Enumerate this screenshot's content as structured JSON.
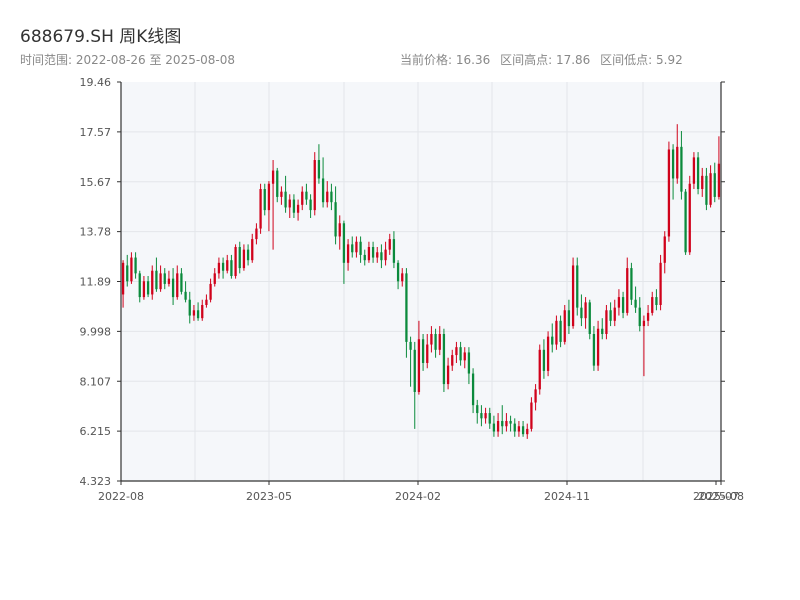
{
  "header": {
    "title": "688679.SH 周K线图",
    "range_label": "时间范围:",
    "range_start": "2022-08-26",
    "range_sep": "至",
    "range_end": "2025-08-08",
    "price_label": "当前价格:",
    "price_value": "16.36",
    "high_label": "区间高点:",
    "high_value": "17.86",
    "low_label": "区间低点:",
    "low_value": "5.92"
  },
  "colors": {
    "up": "#d0021b",
    "down": "#0b8a3c",
    "bg": "#f5f7fa",
    "axis": "#333333",
    "grid": "#e3e6ea"
  },
  "chart_data": {
    "type": "candlestick",
    "title": "688679.SH 周K线图",
    "ylim": [
      4.323,
      19.46
    ],
    "y_ticks": [
      "19.46",
      "17.57",
      "15.67",
      "13.78",
      "11.89",
      "9.998",
      "8.107",
      "6.215",
      "4.323"
    ],
    "x_ticks": [
      "2022-08",
      "2023-05",
      "2024-02",
      "2024-11",
      "2025-07",
      "2025-08"
    ],
    "grid": true,
    "candles": [
      [
        11.4,
        12.6,
        12.7,
        10.9
      ],
      [
        12.5,
        11.9,
        12.9,
        11.7
      ],
      [
        11.9,
        12.8,
        13.0,
        11.8
      ],
      [
        12.8,
        12.2,
        13.0,
        12.0
      ],
      [
        12.2,
        11.3,
        12.3,
        11.1
      ],
      [
        11.3,
        11.9,
        12.1,
        11.2
      ],
      [
        11.9,
        11.4,
        12.1,
        11.3
      ],
      [
        11.4,
        12.3,
        12.5,
        11.2
      ],
      [
        12.3,
        11.6,
        12.8,
        11.5
      ],
      [
        11.6,
        12.2,
        12.5,
        11.5
      ],
      [
        12.2,
        11.8,
        12.4,
        11.6
      ],
      [
        11.8,
        12.0,
        12.3,
        11.7
      ],
      [
        12.0,
        11.3,
        12.4,
        11.0
      ],
      [
        11.3,
        12.2,
        12.5,
        11.2
      ],
      [
        12.2,
        11.5,
        12.4,
        11.4
      ],
      [
        11.5,
        11.2,
        11.9,
        11.1
      ],
      [
        11.2,
        10.6,
        11.5,
        10.3
      ],
      [
        10.6,
        10.8,
        11.0,
        10.4
      ],
      [
        10.8,
        10.5,
        11.1,
        10.4
      ],
      [
        10.5,
        11.0,
        11.2,
        10.4
      ],
      [
        11.0,
        11.2,
        11.4,
        10.9
      ],
      [
        11.2,
        11.8,
        12.0,
        11.1
      ],
      [
        11.8,
        12.2,
        12.4,
        11.7
      ],
      [
        12.2,
        12.6,
        12.8,
        12.0
      ],
      [
        12.6,
        12.3,
        12.8,
        12.0
      ],
      [
        12.3,
        12.7,
        12.9,
        12.2
      ],
      [
        12.7,
        12.1,
        12.9,
        12.0
      ],
      [
        12.1,
        13.2,
        13.3,
        12.0
      ],
      [
        13.2,
        12.4,
        13.4,
        12.2
      ],
      [
        12.4,
        13.1,
        13.3,
        12.3
      ],
      [
        13.1,
        12.7,
        13.3,
        12.5
      ],
      [
        12.7,
        13.5,
        13.7,
        12.6
      ],
      [
        13.5,
        13.9,
        14.1,
        13.3
      ],
      [
        13.9,
        15.4,
        15.6,
        13.7
      ],
      [
        15.4,
        14.6,
        15.6,
        14.4
      ],
      [
        14.6,
        15.6,
        15.7,
        13.8
      ],
      [
        15.6,
        16.1,
        16.5,
        13.1
      ],
      [
        16.1,
        15.1,
        16.2,
        14.9
      ],
      [
        15.1,
        15.3,
        15.5,
        14.8
      ],
      [
        15.3,
        14.7,
        15.9,
        14.5
      ],
      [
        14.7,
        15.0,
        15.2,
        14.3
      ],
      [
        15.0,
        14.5,
        15.2,
        14.3
      ],
      [
        14.5,
        14.8,
        15.0,
        14.2
      ],
      [
        14.8,
        15.3,
        15.5,
        14.6
      ],
      [
        15.3,
        15.0,
        15.6,
        14.8
      ],
      [
        15.0,
        14.6,
        15.2,
        14.3
      ],
      [
        14.6,
        16.5,
        16.8,
        14.4
      ],
      [
        16.5,
        15.8,
        17.1,
        15.6
      ],
      [
        15.8,
        14.9,
        16.6,
        14.7
      ],
      [
        14.9,
        15.3,
        15.7,
        14.7
      ],
      [
        15.3,
        14.9,
        15.6,
        14.6
      ],
      [
        14.9,
        13.6,
        15.5,
        13.3
      ],
      [
        13.6,
        14.1,
        14.4,
        13.1
      ],
      [
        14.1,
        12.6,
        14.2,
        11.8
      ],
      [
        12.6,
        13.3,
        13.5,
        12.3
      ],
      [
        13.3,
        13.0,
        13.6,
        12.8
      ],
      [
        13.0,
        13.4,
        13.6,
        12.8
      ],
      [
        13.4,
        12.9,
        13.6,
        12.6
      ],
      [
        12.9,
        12.7,
        13.1,
        12.5
      ],
      [
        12.7,
        13.2,
        13.4,
        12.6
      ],
      [
        13.2,
        12.8,
        13.4,
        12.6
      ],
      [
        12.8,
        13.0,
        13.2,
        12.6
      ],
      [
        13.0,
        12.7,
        13.3,
        12.4
      ],
      [
        12.7,
        13.1,
        13.4,
        12.5
      ],
      [
        13.1,
        13.5,
        13.7,
        12.9
      ],
      [
        13.5,
        12.6,
        13.8,
        12.4
      ],
      [
        12.6,
        11.9,
        12.7,
        11.6
      ],
      [
        11.9,
        12.2,
        12.4,
        11.7
      ],
      [
        12.2,
        9.6,
        12.4,
        9.0
      ],
      [
        9.6,
        9.3,
        9.8,
        7.9
      ],
      [
        9.3,
        7.7,
        9.6,
        6.3
      ],
      [
        7.7,
        9.7,
        10.4,
        7.6
      ],
      [
        9.7,
        8.8,
        9.9,
        8.5
      ],
      [
        8.8,
        9.5,
        9.9,
        8.6
      ],
      [
        9.5,
        9.9,
        10.2,
        9.2
      ],
      [
        9.9,
        9.3,
        10.1,
        9.0
      ],
      [
        9.3,
        9.9,
        10.2,
        9.1
      ],
      [
        9.9,
        8.0,
        10.1,
        7.7
      ],
      [
        8.0,
        8.7,
        9.0,
        7.8
      ],
      [
        8.7,
        9.1,
        9.3,
        8.5
      ],
      [
        9.1,
        9.4,
        9.6,
        8.8
      ],
      [
        9.4,
        8.9,
        9.6,
        8.7
      ],
      [
        8.9,
        9.2,
        9.4,
        8.6
      ],
      [
        9.2,
        8.4,
        9.4,
        8.0
      ],
      [
        8.4,
        7.2,
        8.6,
        6.9
      ],
      [
        7.2,
        6.9,
        7.4,
        6.5
      ],
      [
        6.9,
        6.7,
        7.2,
        6.4
      ],
      [
        6.7,
        6.9,
        7.1,
        6.5
      ],
      [
        6.9,
        6.5,
        7.1,
        6.3
      ],
      [
        6.5,
        6.2,
        6.8,
        6.0
      ],
      [
        6.2,
        6.6,
        6.9,
        6.0
      ],
      [
        6.6,
        6.4,
        7.2,
        6.1
      ],
      [
        6.4,
        6.6,
        6.9,
        6.2
      ],
      [
        6.6,
        6.5,
        6.8,
        6.2
      ],
      [
        6.5,
        6.2,
        6.7,
        6.0
      ],
      [
        6.2,
        6.4,
        6.6,
        6.0
      ],
      [
        6.4,
        6.1,
        6.6,
        6.0
      ],
      [
        6.1,
        6.3,
        6.5,
        5.92
      ],
      [
        6.3,
        7.3,
        7.5,
        6.2
      ],
      [
        7.3,
        7.8,
        8.0,
        7.0
      ],
      [
        7.8,
        9.3,
        9.5,
        7.6
      ],
      [
        9.3,
        8.5,
        9.7,
        8.2
      ],
      [
        8.5,
        9.8,
        10.0,
        8.3
      ],
      [
        9.8,
        9.5,
        10.3,
        9.2
      ],
      [
        9.5,
        10.4,
        10.6,
        9.3
      ],
      [
        10.4,
        9.6,
        10.6,
        9.4
      ],
      [
        9.6,
        10.8,
        11.0,
        9.5
      ],
      [
        10.8,
        10.2,
        11.2,
        9.9
      ],
      [
        10.2,
        12.5,
        12.8,
        10.1
      ],
      [
        12.5,
        10.9,
        12.8,
        10.6
      ],
      [
        10.9,
        10.5,
        11.4,
        10.2
      ],
      [
        10.5,
        11.1,
        11.3,
        10.1
      ],
      [
        11.1,
        9.9,
        11.2,
        9.7
      ],
      [
        9.9,
        8.7,
        10.2,
        8.5
      ],
      [
        8.7,
        10.1,
        10.4,
        8.5
      ],
      [
        10.1,
        9.9,
        10.5,
        9.7
      ],
      [
        9.9,
        10.8,
        11.0,
        9.7
      ],
      [
        10.8,
        10.4,
        11.1,
        10.2
      ],
      [
        10.4,
        10.9,
        11.2,
        10.2
      ],
      [
        10.9,
        11.3,
        11.6,
        10.6
      ],
      [
        11.3,
        10.7,
        11.5,
        10.5
      ],
      [
        10.7,
        12.4,
        12.8,
        10.6
      ],
      [
        12.4,
        11.2,
        12.6,
        11.0
      ],
      [
        11.2,
        10.9,
        11.7,
        10.7
      ],
      [
        10.9,
        10.2,
        11.3,
        10.0
      ],
      [
        10.2,
        10.4,
        10.6,
        8.3
      ],
      [
        10.4,
        10.7,
        11.0,
        10.2
      ],
      [
        10.7,
        11.3,
        11.5,
        10.6
      ],
      [
        11.3,
        11.0,
        11.6,
        10.8
      ],
      [
        11.0,
        12.6,
        12.9,
        10.8
      ],
      [
        12.6,
        13.6,
        13.8,
        12.2
      ],
      [
        13.6,
        16.9,
        17.2,
        13.4
      ],
      [
        16.9,
        15.8,
        17.1,
        15.0
      ],
      [
        15.8,
        17.0,
        17.86,
        15.6
      ],
      [
        17.0,
        15.3,
        17.6,
        15.0
      ],
      [
        15.3,
        13.0,
        15.4,
        12.9
      ],
      [
        13.0,
        15.6,
        15.9,
        12.9
      ],
      [
        15.6,
        16.6,
        16.8,
        15.4
      ],
      [
        16.6,
        15.4,
        16.8,
        15.2
      ],
      [
        15.4,
        15.9,
        16.2,
        15.1
      ],
      [
        15.9,
        14.8,
        16.2,
        14.6
      ],
      [
        14.8,
        16.0,
        16.3,
        14.7
      ],
      [
        16.0,
        15.1,
        16.4,
        14.9
      ],
      [
        15.1,
        16.36,
        17.4,
        15.0
      ]
    ]
  }
}
